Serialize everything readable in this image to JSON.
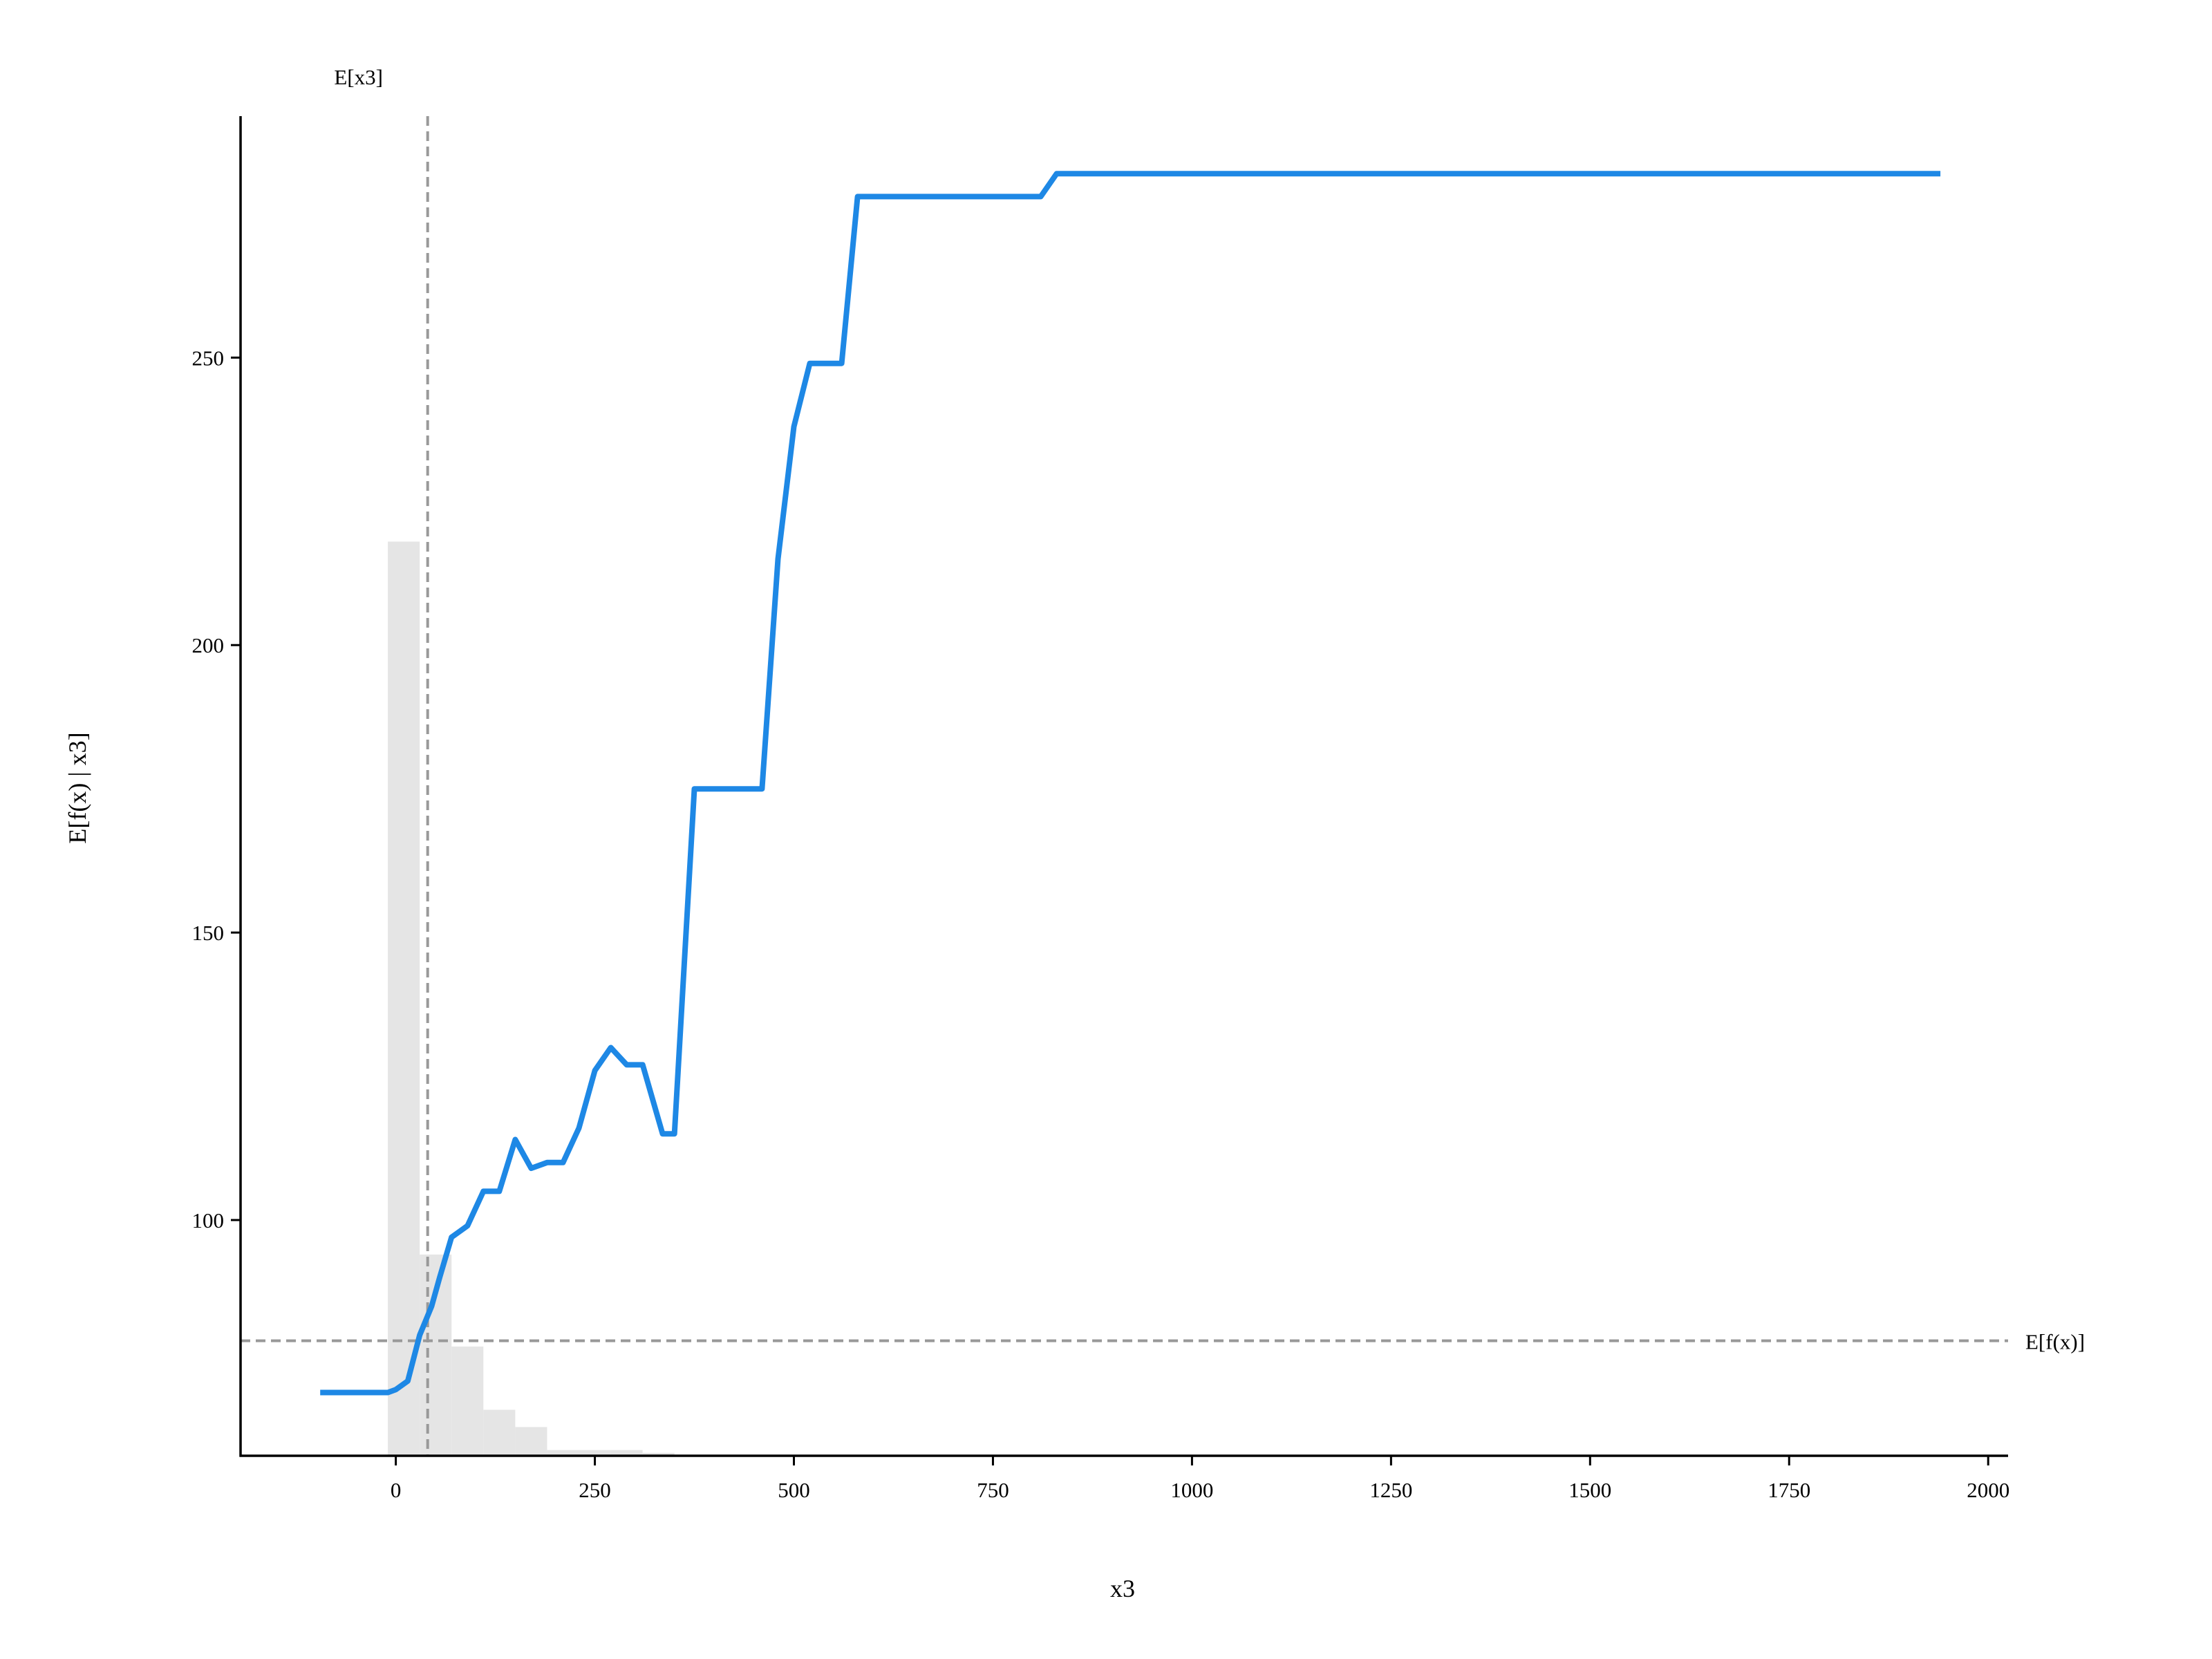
{
  "chart_data": {
    "type": "line",
    "title": "",
    "xlabel": "x3",
    "ylabel": "E[f(x) | x3]",
    "xlim": [
      -195,
      2025
    ],
    "ylim": [
      59,
      292
    ],
    "xticks": [
      0,
      250,
      500,
      750,
      1000,
      1250,
      1500,
      1750,
      2000
    ],
    "xtick_labels": [
      "0",
      "250",
      "500",
      "750",
      "1000",
      "1250",
      "1500",
      "1750",
      "2000"
    ],
    "yticks": [
      100,
      150,
      200,
      250
    ],
    "ytick_labels": [
      "100",
      "150",
      "200",
      "250"
    ],
    "grid": false,
    "series": [
      {
        "color": "#1E88E5",
        "x": [
          -95,
          -10,
          0,
          15,
          30,
          45,
          55,
          70,
          90,
          110,
          130,
          150,
          170,
          190,
          210,
          230,
          250,
          270,
          290,
          310,
          335,
          350,
          375,
          395,
          460,
          480,
          500,
          520,
          560,
          580,
          600,
          810,
          830,
          1940
        ],
        "y": [
          70,
          70,
          70.5,
          72,
          80,
          85,
          90,
          97,
          99,
          105,
          105,
          114,
          109,
          110,
          110,
          116,
          126,
          130,
          127,
          127,
          115,
          115,
          175,
          175,
          175,
          215,
          238,
          249,
          249,
          278,
          278,
          278,
          282,
          282
        ]
      }
    ],
    "histogram": {
      "color": "#E5E5E5",
      "bins": [
        {
          "x0": -10,
          "x1": 30,
          "value": 218
        },
        {
          "x0": 30,
          "x1": 70,
          "value": 94
        },
        {
          "x0": 70,
          "x1": 110,
          "value": 78
        },
        {
          "x0": 110,
          "x1": 150,
          "value": 67
        },
        {
          "x0": 150,
          "x1": 190,
          "value": 64
        },
        {
          "x0": 190,
          "x1": 230,
          "value": 60
        },
        {
          "x0": 230,
          "x1": 270,
          "value": 60
        },
        {
          "x0": 270,
          "x1": 310,
          "value": 60
        },
        {
          "x0": 310,
          "x1": 350,
          "value": 59.5
        }
      ]
    },
    "reference_lines": {
      "vertical": {
        "x": 40,
        "label": "E[x3]"
      },
      "horizontal": {
        "y": 79,
        "label": "E[f(x)]"
      },
      "color": "#999999"
    }
  }
}
